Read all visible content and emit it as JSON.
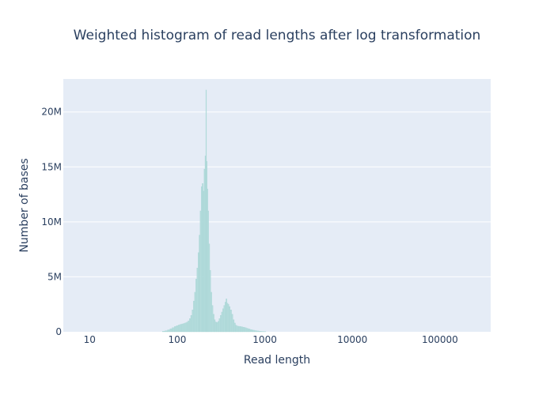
{
  "chart_data": {
    "type": "bar",
    "title": "Weighted histogram of read lengths after log transformation",
    "xlabel": "Read length",
    "ylabel": "Number of bases",
    "x_scale": "log",
    "xlim": [
      5,
      380000
    ],
    "ylim": [
      0,
      23000000
    ],
    "x_ticks": [
      {
        "value": 10,
        "label": "10"
      },
      {
        "value": 100,
        "label": "100"
      },
      {
        "value": 1000,
        "label": "1000"
      },
      {
        "value": 10000,
        "label": "10000"
      },
      {
        "value": 100000,
        "label": "100000"
      }
    ],
    "y_ticks": [
      {
        "value": 0,
        "label": "0"
      },
      {
        "value": 5000000,
        "label": "5M"
      },
      {
        "value": 10000000,
        "label": "10M"
      },
      {
        "value": 15000000,
        "label": "15M"
      },
      {
        "value": 20000000,
        "label": "20M"
      }
    ],
    "grid": true,
    "colors": {
      "bar": "#b4dcdc",
      "plot_bg": "#e5ecf6",
      "grid": "#ffffff",
      "text": "#2a3f5f"
    },
    "bins": [
      {
        "x": 70,
        "y": 50000
      },
      {
        "x": 75,
        "y": 100000
      },
      {
        "x": 80,
        "y": 180000
      },
      {
        "x": 85,
        "y": 280000
      },
      {
        "x": 90,
        "y": 380000
      },
      {
        "x": 95,
        "y": 480000
      },
      {
        "x": 100,
        "y": 560000
      },
      {
        "x": 105,
        "y": 620000
      },
      {
        "x": 110,
        "y": 680000
      },
      {
        "x": 115,
        "y": 720000
      },
      {
        "x": 120,
        "y": 760000
      },
      {
        "x": 125,
        "y": 820000
      },
      {
        "x": 130,
        "y": 880000
      },
      {
        "x": 135,
        "y": 1000000
      },
      {
        "x": 140,
        "y": 1200000
      },
      {
        "x": 145,
        "y": 1500000
      },
      {
        "x": 150,
        "y": 2000000
      },
      {
        "x": 155,
        "y": 2800000
      },
      {
        "x": 160,
        "y": 3600000
      },
      {
        "x": 165,
        "y": 4800000
      },
      {
        "x": 170,
        "y": 5800000
      },
      {
        "x": 175,
        "y": 7200000
      },
      {
        "x": 180,
        "y": 8800000
      },
      {
        "x": 185,
        "y": 11000000
      },
      {
        "x": 190,
        "y": 13200000
      },
      {
        "x": 195,
        "y": 13500000
      },
      {
        "x": 200,
        "y": 12800000
      },
      {
        "x": 205,
        "y": 14800000
      },
      {
        "x": 210,
        "y": 16000000
      },
      {
        "x": 214,
        "y": 22000000
      },
      {
        "x": 218,
        "y": 15500000
      },
      {
        "x": 222,
        "y": 13000000
      },
      {
        "x": 226,
        "y": 11000000
      },
      {
        "x": 232,
        "y": 8000000
      },
      {
        "x": 238,
        "y": 5600000
      },
      {
        "x": 245,
        "y": 3600000
      },
      {
        "x": 252,
        "y": 2400000
      },
      {
        "x": 260,
        "y": 1600000
      },
      {
        "x": 268,
        "y": 1100000
      },
      {
        "x": 276,
        "y": 900000
      },
      {
        "x": 285,
        "y": 850000
      },
      {
        "x": 295,
        "y": 950000
      },
      {
        "x": 305,
        "y": 1200000
      },
      {
        "x": 315,
        "y": 1500000
      },
      {
        "x": 325,
        "y": 1800000
      },
      {
        "x": 335,
        "y": 2100000
      },
      {
        "x": 345,
        "y": 2400000
      },
      {
        "x": 355,
        "y": 2700000
      },
      {
        "x": 365,
        "y": 3000000
      },
      {
        "x": 375,
        "y": 2600000
      },
      {
        "x": 385,
        "y": 2500000
      },
      {
        "x": 395,
        "y": 2300000
      },
      {
        "x": 410,
        "y": 2000000
      },
      {
        "x": 425,
        "y": 1600000
      },
      {
        "x": 440,
        "y": 1100000
      },
      {
        "x": 455,
        "y": 800000
      },
      {
        "x": 470,
        "y": 600000
      },
      {
        "x": 490,
        "y": 520000
      },
      {
        "x": 510,
        "y": 500000
      },
      {
        "x": 530,
        "y": 480000
      },
      {
        "x": 550,
        "y": 450000
      },
      {
        "x": 575,
        "y": 420000
      },
      {
        "x": 600,
        "y": 380000
      },
      {
        "x": 630,
        "y": 320000
      },
      {
        "x": 660,
        "y": 260000
      },
      {
        "x": 700,
        "y": 200000
      },
      {
        "x": 740,
        "y": 150000
      },
      {
        "x": 780,
        "y": 110000
      },
      {
        "x": 830,
        "y": 80000
      },
      {
        "x": 880,
        "y": 55000
      },
      {
        "x": 940,
        "y": 35000
      },
      {
        "x": 1000,
        "y": 20000
      }
    ]
  }
}
